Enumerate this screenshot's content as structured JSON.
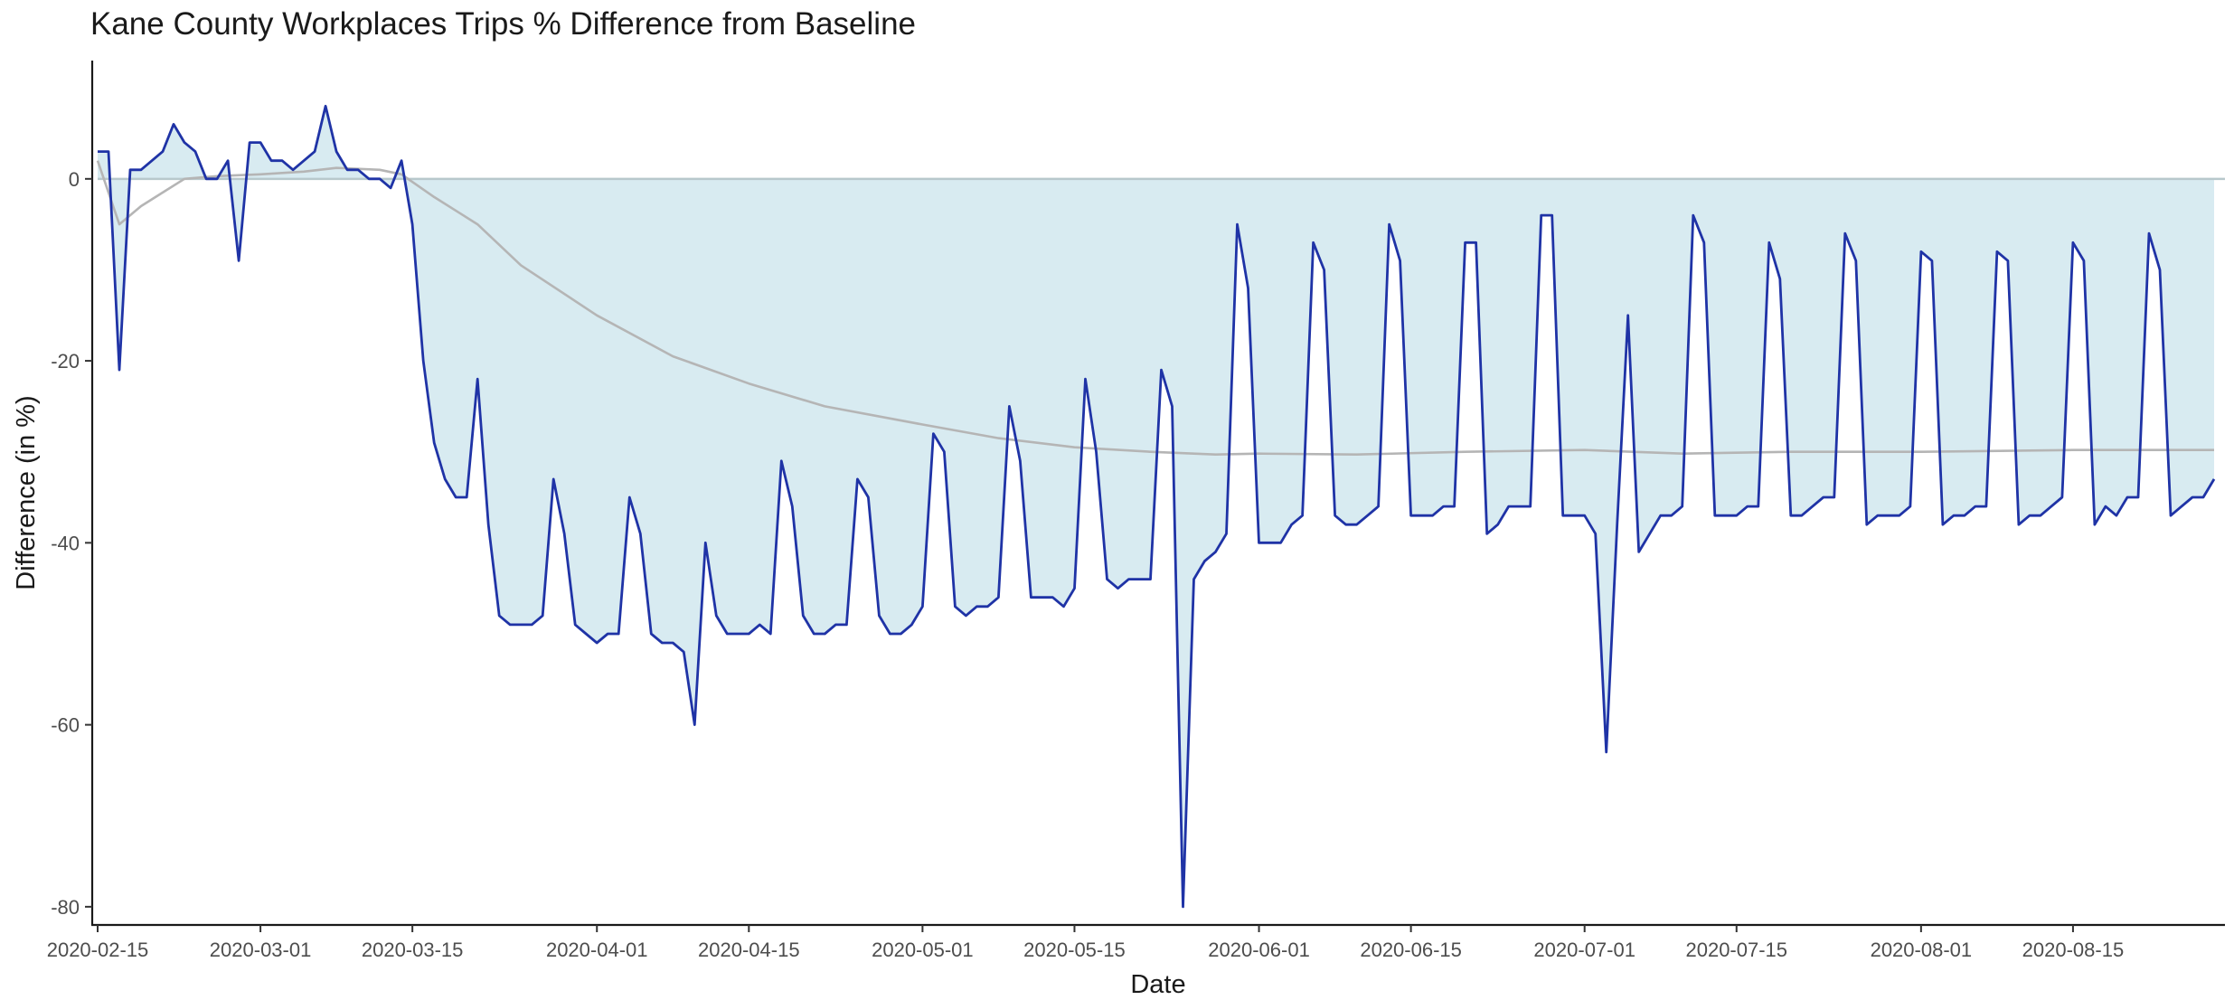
{
  "chart_data": {
    "type": "area",
    "title": "Kane County Workplaces Trips % Difference from Baseline",
    "xlabel": "Date",
    "ylabel": "Difference (in %)",
    "x_type": "date",
    "xlim": [
      "2020-02-15",
      "2020-08-29"
    ],
    "ylim": [
      -82,
      13
    ],
    "grid": false,
    "legend": "none",
    "x_ticks": [
      "2020-02-15",
      "2020-03-01",
      "2020-03-15",
      "2020-04-01",
      "2020-04-15",
      "2020-05-01",
      "2020-05-15",
      "2020-06-01",
      "2020-06-15",
      "2020-07-01",
      "2020-07-15",
      "2020-08-01",
      "2020-08-15"
    ],
    "y_ticks": [
      0,
      -20,
      -40,
      -60,
      -80
    ],
    "baseline": 0,
    "colors": {
      "daily_line": "#1f33a6",
      "fill": "#d8ebf1",
      "average_line": "#b5b5b5",
      "zero_line": "#b8c8cc"
    },
    "series": [
      {
        "id": "daily",
        "style": "line-with-fill-to-zero",
        "x": [
          "2020-02-15",
          "2020-02-16",
          "2020-02-17",
          "2020-02-18",
          "2020-02-19",
          "2020-02-20",
          "2020-02-21",
          "2020-02-22",
          "2020-02-23",
          "2020-02-24",
          "2020-02-25",
          "2020-02-26",
          "2020-02-27",
          "2020-02-28",
          "2020-02-29",
          "2020-03-01",
          "2020-03-02",
          "2020-03-03",
          "2020-03-04",
          "2020-03-05",
          "2020-03-06",
          "2020-03-07",
          "2020-03-08",
          "2020-03-09",
          "2020-03-10",
          "2020-03-11",
          "2020-03-12",
          "2020-03-13",
          "2020-03-14",
          "2020-03-15",
          "2020-03-16",
          "2020-03-17",
          "2020-03-18",
          "2020-03-19",
          "2020-03-20",
          "2020-03-21",
          "2020-03-22",
          "2020-03-23",
          "2020-03-24",
          "2020-03-25",
          "2020-03-26",
          "2020-03-27",
          "2020-03-28",
          "2020-03-29",
          "2020-03-30",
          "2020-03-31",
          "2020-04-01",
          "2020-04-02",
          "2020-04-03",
          "2020-04-04",
          "2020-04-05",
          "2020-04-06",
          "2020-04-07",
          "2020-04-08",
          "2020-04-09",
          "2020-04-10",
          "2020-04-11",
          "2020-04-12",
          "2020-04-13",
          "2020-04-14",
          "2020-04-15",
          "2020-04-16",
          "2020-04-17",
          "2020-04-18",
          "2020-04-19",
          "2020-04-20",
          "2020-04-21",
          "2020-04-22",
          "2020-04-23",
          "2020-04-24",
          "2020-04-25",
          "2020-04-26",
          "2020-04-27",
          "2020-04-28",
          "2020-04-29",
          "2020-04-30",
          "2020-05-01",
          "2020-05-02",
          "2020-05-03",
          "2020-05-04",
          "2020-05-05",
          "2020-05-06",
          "2020-05-07",
          "2020-05-08",
          "2020-05-09",
          "2020-05-10",
          "2020-05-11",
          "2020-05-12",
          "2020-05-13",
          "2020-05-14",
          "2020-05-15",
          "2020-05-16",
          "2020-05-17",
          "2020-05-18",
          "2020-05-19",
          "2020-05-20",
          "2020-05-21",
          "2020-05-22",
          "2020-05-23",
          "2020-05-24",
          "2020-05-25",
          "2020-05-26",
          "2020-05-27",
          "2020-05-28",
          "2020-05-29",
          "2020-05-30",
          "2020-05-31",
          "2020-06-01",
          "2020-06-02",
          "2020-06-03",
          "2020-06-04",
          "2020-06-05",
          "2020-06-06",
          "2020-06-07",
          "2020-06-08",
          "2020-06-09",
          "2020-06-10",
          "2020-06-11",
          "2020-06-12",
          "2020-06-13",
          "2020-06-14",
          "2020-06-15",
          "2020-06-16",
          "2020-06-17",
          "2020-06-18",
          "2020-06-19",
          "2020-06-20",
          "2020-06-21",
          "2020-06-22",
          "2020-06-23",
          "2020-06-24",
          "2020-06-25",
          "2020-06-26",
          "2020-06-27",
          "2020-06-28",
          "2020-06-29",
          "2020-06-30",
          "2020-07-01",
          "2020-07-02",
          "2020-07-03",
          "2020-07-04",
          "2020-07-05",
          "2020-07-06",
          "2020-07-07",
          "2020-07-08",
          "2020-07-09",
          "2020-07-10",
          "2020-07-11",
          "2020-07-12",
          "2020-07-13",
          "2020-07-14",
          "2020-07-15",
          "2020-07-16",
          "2020-07-17",
          "2020-07-18",
          "2020-07-19",
          "2020-07-20",
          "2020-07-21",
          "2020-07-22",
          "2020-07-23",
          "2020-07-24",
          "2020-07-25",
          "2020-07-26",
          "2020-07-27",
          "2020-07-28",
          "2020-07-29",
          "2020-07-30",
          "2020-07-31",
          "2020-08-01",
          "2020-08-02",
          "2020-08-03",
          "2020-08-04",
          "2020-08-05",
          "2020-08-06",
          "2020-08-07",
          "2020-08-08",
          "2020-08-09",
          "2020-08-10",
          "2020-08-11",
          "2020-08-12",
          "2020-08-13",
          "2020-08-14",
          "2020-08-15",
          "2020-08-16",
          "2020-08-17",
          "2020-08-18",
          "2020-08-19",
          "2020-08-20",
          "2020-08-21",
          "2020-08-22",
          "2020-08-23",
          "2020-08-24",
          "2020-08-25",
          "2020-08-26",
          "2020-08-27",
          "2020-08-28"
        ],
        "values": [
          3,
          3,
          -21,
          1,
          1,
          2,
          3,
          6,
          4,
          3,
          0,
          0,
          2,
          -9,
          4,
          4,
          2,
          2,
          1,
          2,
          3,
          8,
          3,
          1,
          1,
          0,
          0,
          -1,
          2,
          -5,
          -20,
          -29,
          -33,
          -35,
          -35,
          -22,
          -38,
          -48,
          -49,
          -49,
          -49,
          -48,
          -33,
          -39,
          -49,
          -50,
          -51,
          -50,
          -50,
          -35,
          -39,
          -50,
          -51,
          -51,
          -52,
          -60,
          -40,
          -48,
          -50,
          -50,
          -50,
          -49,
          -50,
          -31,
          -36,
          -48,
          -50,
          -50,
          -49,
          -49,
          -33,
          -35,
          -48,
          -50,
          -50,
          -49,
          -47,
          -28,
          -30,
          -47,
          -48,
          -47,
          -47,
          -46,
          -25,
          -31,
          -46,
          -46,
          -46,
          -47,
          -45,
          -22,
          -30,
          -44,
          -45,
          -44,
          -44,
          -44,
          -21,
          -25,
          -80,
          -44,
          -42,
          -41,
          -39,
          -5,
          -12,
          -40,
          -40,
          -40,
          -38,
          -37,
          -7,
          -10,
          -37,
          -38,
          -38,
          -37,
          -36,
          -5,
          -9,
          -37,
          -37,
          -37,
          -36,
          -36,
          -7,
          -7,
          -39,
          -38,
          -36,
          -36,
          -36,
          -4,
          -4,
          -37,
          -37,
          -37,
          -39,
          -63,
          -38,
          -15,
          -41,
          -39,
          -37,
          -37,
          -36,
          -4,
          -7,
          -37,
          -37,
          -37,
          -36,
          -36,
          -7,
          -11,
          -37,
          -37,
          -36,
          -35,
          -35,
          -6,
          -9,
          -38,
          -37,
          -37,
          -37,
          -36,
          -8,
          -9,
          -38,
          -37,
          -37,
          -36,
          -36,
          -8,
          -9,
          -38,
          -37,
          -37,
          -36,
          -35,
          -7,
          -9,
          -38,
          -36,
          -37,
          -35,
          -35,
          -6,
          -10,
          -37,
          -36,
          -35,
          -35,
          -33
        ]
      },
      {
        "id": "average",
        "style": "line",
        "x": [
          "2020-02-15",
          "2020-02-17",
          "2020-02-19",
          "2020-02-21",
          "2020-02-23",
          "2020-02-26",
          "2020-03-01",
          "2020-03-05",
          "2020-03-08",
          "2020-03-12",
          "2020-03-14",
          "2020-03-17",
          "2020-03-21",
          "2020-03-25",
          "2020-04-01",
          "2020-04-08",
          "2020-04-15",
          "2020-04-22",
          "2020-05-01",
          "2020-05-08",
          "2020-05-15",
          "2020-05-22",
          "2020-05-28",
          "2020-06-01",
          "2020-06-10",
          "2020-06-20",
          "2020-07-01",
          "2020-07-10",
          "2020-07-20",
          "2020-08-01",
          "2020-08-15",
          "2020-08-28"
        ],
        "values": [
          2,
          -5,
          -3,
          -1.5,
          0,
          0.3,
          0.5,
          0.8,
          1.2,
          1,
          0.5,
          -2,
          -5,
          -9.5,
          -15,
          -19.5,
          -22.5,
          -25,
          -27,
          -28.5,
          -29.5,
          -30,
          -30.3,
          -30.2,
          -30.3,
          -30,
          -29.8,
          -30.2,
          -30,
          -30,
          -29.8,
          -29.8
        ]
      }
    ]
  }
}
